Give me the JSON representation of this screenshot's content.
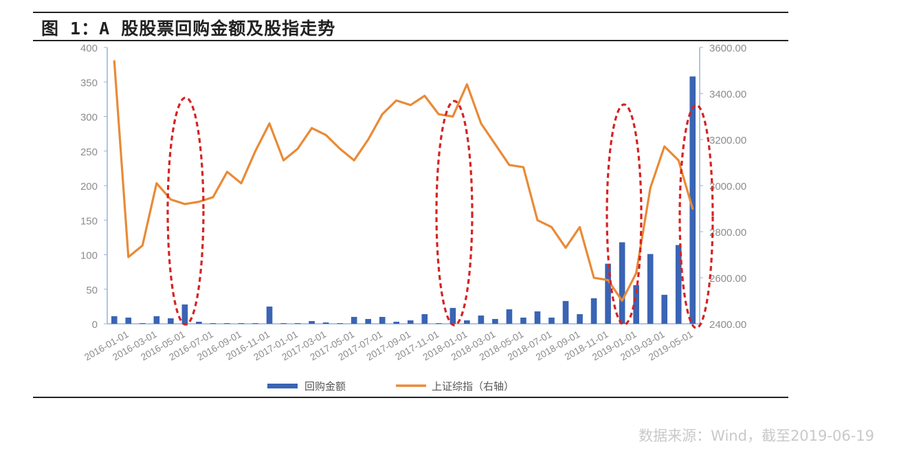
{
  "figure": {
    "title": "图 1：A 股股票回购金额及股指走势",
    "source": "数据来源：Wind，截至2019-06-19"
  },
  "colors": {
    "bar": "#3a64b4",
    "line": "#e98a36",
    "ellipse": "#d62222",
    "axis_text": "#8c8c8c",
    "rule": "#222222"
  },
  "chart_data": {
    "type": "bar+line",
    "title": "",
    "grid": false,
    "legend_position": "bottom-center",
    "x_tick_labels": [
      "2016-01-01",
      "2016-03-01",
      "2016-05-01",
      "2016-07-01",
      "2016-09-01",
      "2016-11-01",
      "2017-01-01",
      "2017-03-01",
      "2017-05-01",
      "2017-07-01",
      "2017-09-01",
      "2017-11-01",
      "2018-01-01",
      "2018-03-01",
      "2018-05-01",
      "2018-07-01",
      "2018-09-01",
      "2018-11-01",
      "2019-01-01",
      "2019-03-01",
      "2019-05-01"
    ],
    "y_left": {
      "ticks": [
        "0",
        "50",
        "100",
        "150",
        "200",
        "250",
        "300",
        "350",
        "400"
      ],
      "min": 0,
      "max": 400
    },
    "y_right": {
      "ticks": [
        "2400.00",
        "2600.00",
        "2800.00",
        "3000.00",
        "3200.00",
        "3400.00",
        "3600.00"
      ],
      "min": 2400,
      "max": 3600
    },
    "series": [
      {
        "name": "回购金额",
        "type": "bar",
        "axis": "left",
        "values": [
          11,
          9,
          1,
          11,
          8,
          28,
          3,
          1,
          1,
          1,
          1,
          25,
          1,
          1,
          4,
          2,
          1,
          10,
          7,
          10,
          3,
          5,
          14,
          1,
          23,
          5,
          12,
          7,
          21,
          9,
          18,
          9,
          33,
          14,
          37,
          87,
          118,
          56,
          101,
          42,
          114,
          358
        ]
      },
      {
        "name": "上证综指（右轴）",
        "type": "line",
        "axis": "right",
        "values": [
          3540,
          2690,
          2740,
          3010,
          2940,
          2920,
          2930,
          2950,
          3060,
          3010,
          3150,
          3270,
          3110,
          3160,
          3250,
          3220,
          3160,
          3110,
          3200,
          3310,
          3370,
          3350,
          3390,
          3310,
          3300,
          3440,
          3270,
          3180,
          3090,
          3080,
          2850,
          2820,
          2730,
          2820,
          2600,
          2590,
          2500,
          2620,
          2990,
          3170,
          3110,
          2900
        ]
      }
    ],
    "annotations": [
      {
        "type": "dashed-ellipse",
        "around": "2016-07-01"
      },
      {
        "type": "dashed-ellipse",
        "around": "2018-01-01"
      },
      {
        "type": "dashed-ellipse",
        "around": "2019-01-01"
      },
      {
        "type": "dashed-ellipse",
        "around": "2019-06"
      }
    ]
  }
}
